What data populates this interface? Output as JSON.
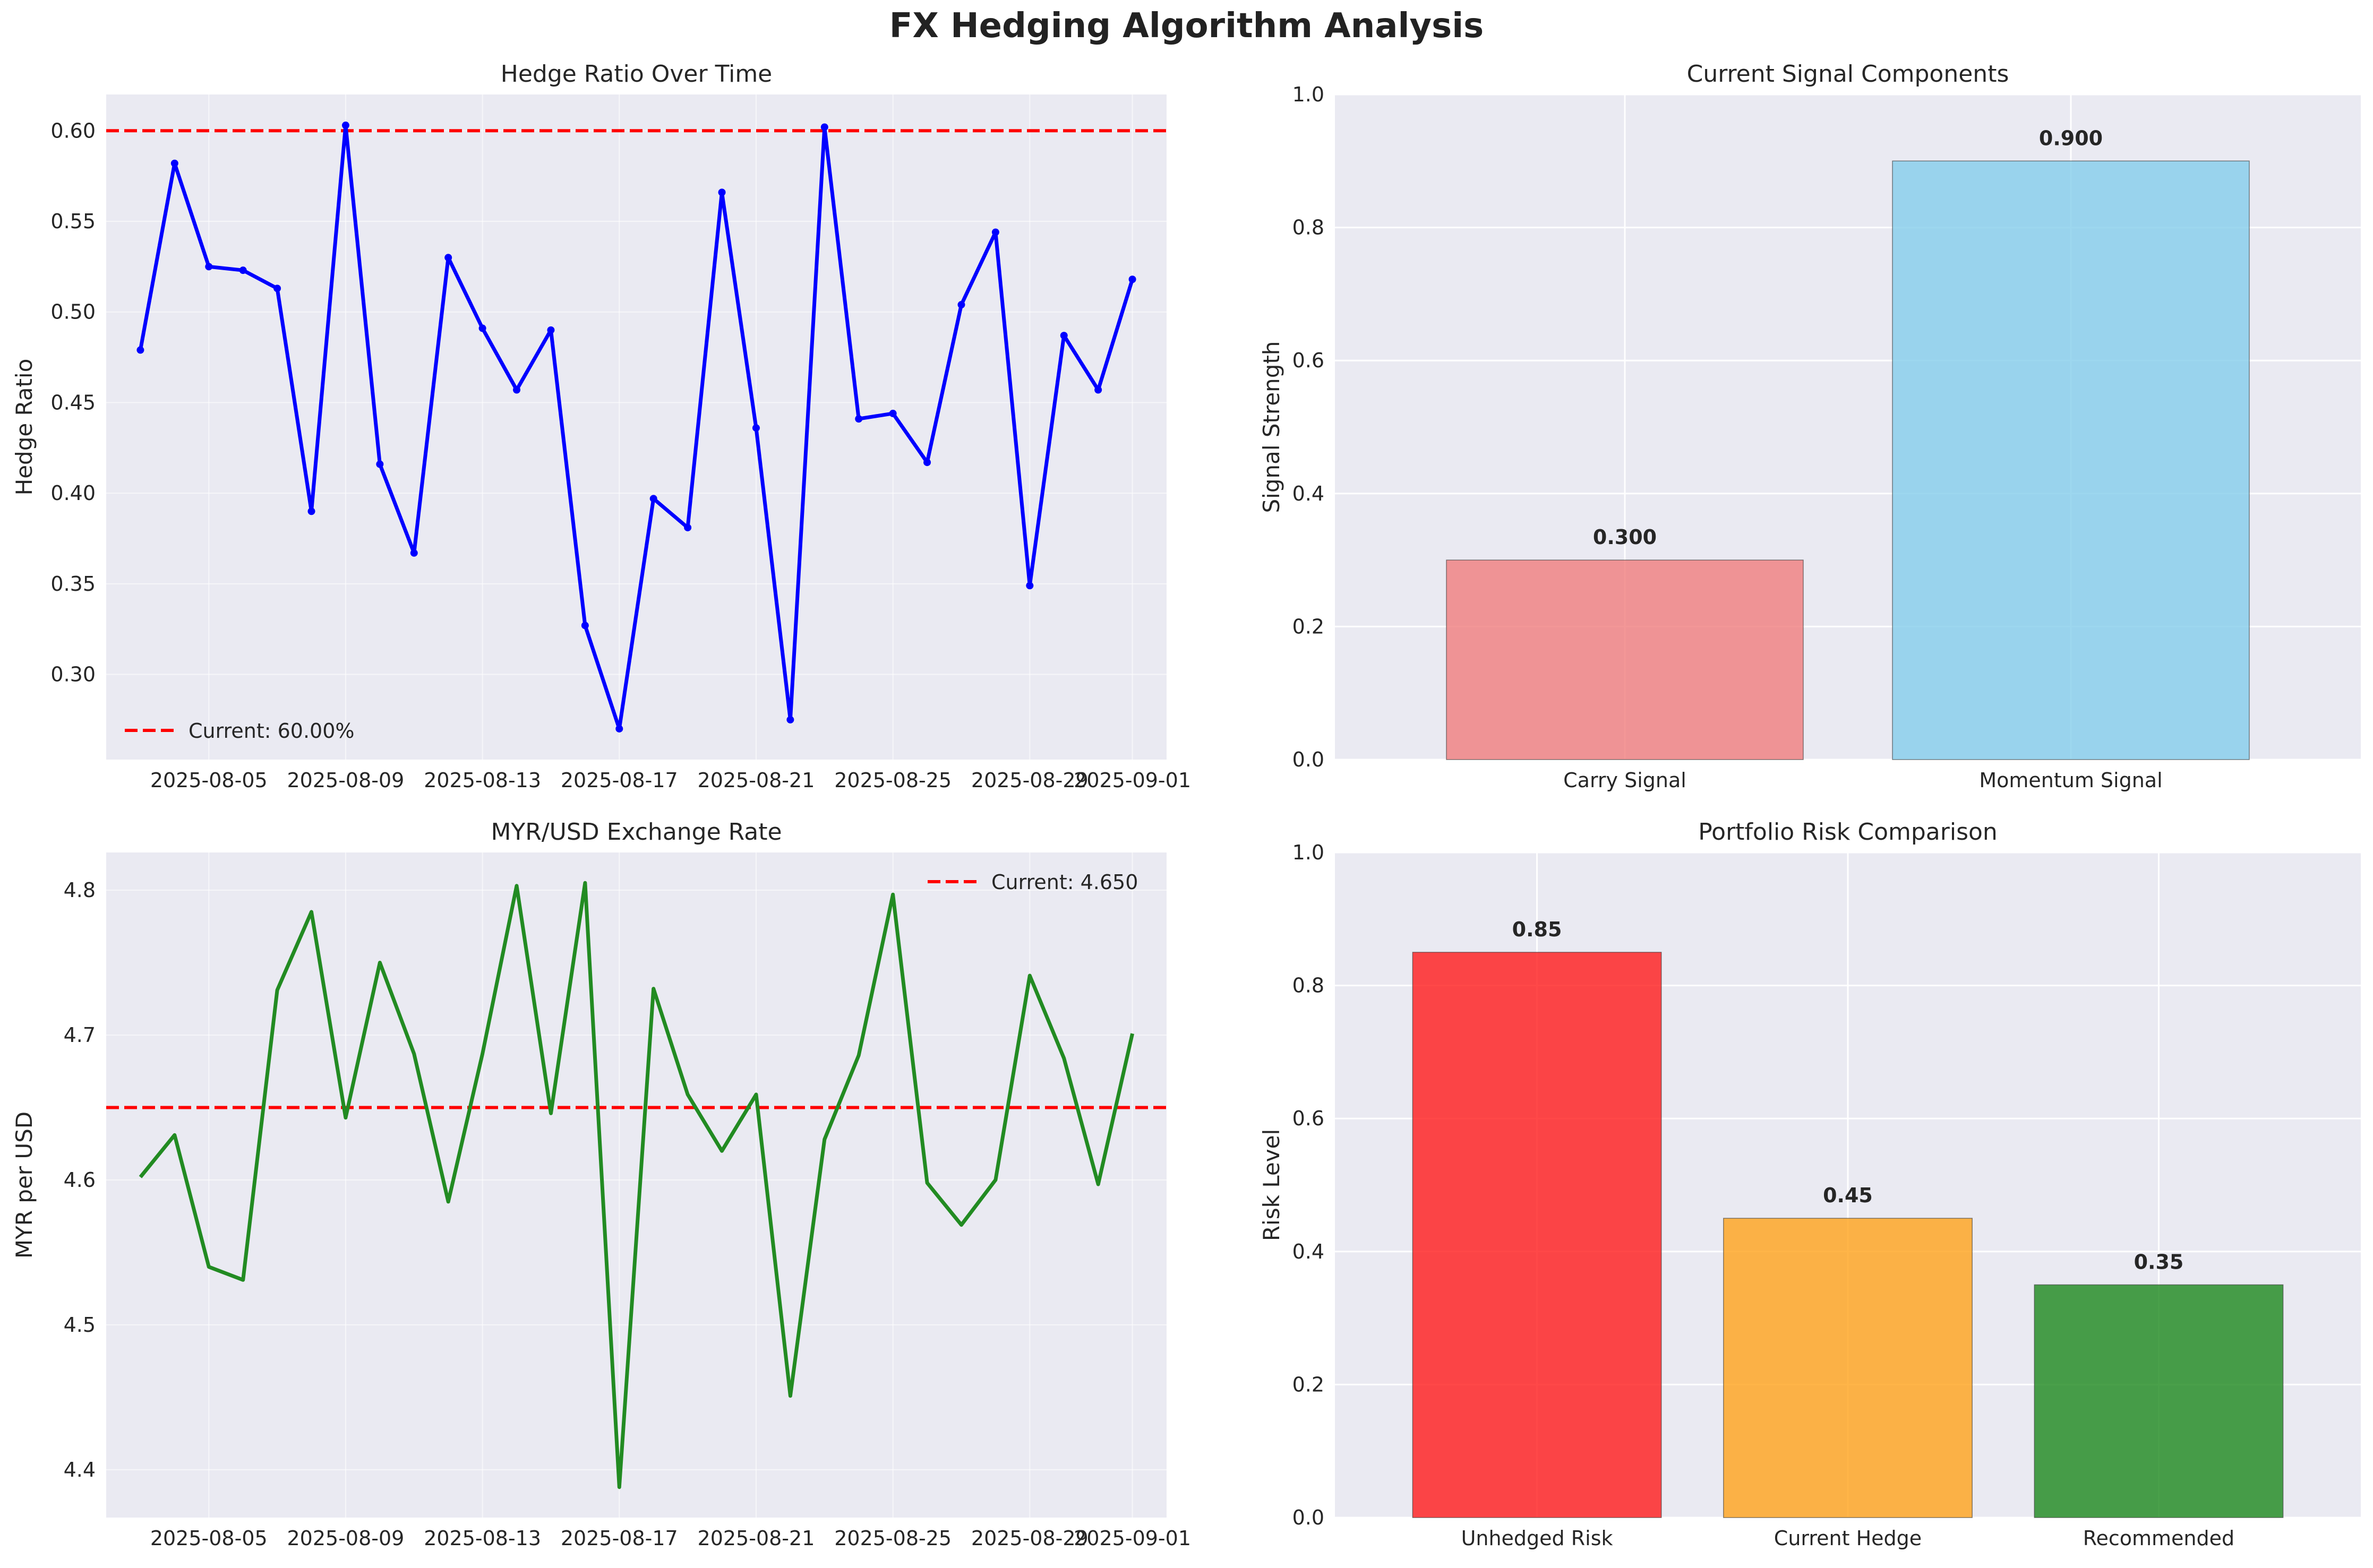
{
  "figure": {
    "title": "FX Hedging Algorithm Analysis",
    "colors": {
      "panel_bg": "#eaeaf2",
      "grid": "#ffffff",
      "text": "#262626",
      "reference": "#ff0000"
    }
  },
  "chart_data": [
    {
      "type": "line",
      "title": "Hedge Ratio Over Time",
      "xlabel": "",
      "ylabel": "Hedge Ratio",
      "x": [
        "2025-08-03",
        "2025-08-04",
        "2025-08-05",
        "2025-08-06",
        "2025-08-07",
        "2025-08-08",
        "2025-08-09",
        "2025-08-10",
        "2025-08-11",
        "2025-08-12",
        "2025-08-13",
        "2025-08-14",
        "2025-08-15",
        "2025-08-16",
        "2025-08-17",
        "2025-08-18",
        "2025-08-19",
        "2025-08-20",
        "2025-08-21",
        "2025-08-22",
        "2025-08-23",
        "2025-08-24",
        "2025-08-25",
        "2025-08-26",
        "2025-08-27",
        "2025-08-28",
        "2025-08-29",
        "2025-08-30",
        "2025-08-31",
        "2025-09-01"
      ],
      "series": [
        {
          "values": [
            0.479,
            0.582,
            0.525,
            0.523,
            0.513,
            0.39,
            0.603,
            0.416,
            0.367,
            0.53,
            0.491,
            0.457,
            0.49,
            0.327,
            0.27,
            0.397,
            0.381,
            0.566,
            0.436,
            0.275,
            0.602,
            0.441,
            0.444,
            0.417,
            0.504,
            0.544,
            0.349,
            0.487,
            0.457,
            0.518
          ],
          "color": "#0000ff",
          "markers": true
        }
      ],
      "reference_line": {
        "y": 0.6,
        "label": "Current: 60.00%",
        "color": "#ff0000",
        "style": "dashed"
      },
      "xticks": [
        "2025-08-05",
        "2025-08-09",
        "2025-08-13",
        "2025-08-17",
        "2025-08-21",
        "2025-08-25",
        "2025-08-29",
        "2025-09-01"
      ],
      "yticks": [
        "0.30",
        "0.35",
        "0.40",
        "0.45",
        "0.50",
        "0.55",
        "0.60"
      ],
      "xlim": [
        "2025-08-02",
        "2025-09-02"
      ],
      "ylim": [
        0.253,
        0.62
      ],
      "grid": true,
      "legend": "lower-left"
    },
    {
      "type": "bar",
      "title": "Current Signal Components",
      "xlabel": "",
      "ylabel": "Signal Strength",
      "categories": [
        "Carry Signal",
        "Momentum Signal"
      ],
      "values": [
        0.3,
        0.9
      ],
      "value_labels": [
        "0.300",
        "0.900"
      ],
      "colors": [
        "#f08080",
        "#87ceeb"
      ],
      "yticks": [
        "0.0",
        "0.2",
        "0.4",
        "0.6",
        "0.8",
        "1.0"
      ],
      "ylim": [
        0,
        1
      ],
      "grid": true
    },
    {
      "type": "line",
      "title": "MYR/USD Exchange Rate",
      "xlabel": "",
      "ylabel": "MYR per USD",
      "x": [
        "2025-08-03",
        "2025-08-04",
        "2025-08-05",
        "2025-08-06",
        "2025-08-07",
        "2025-08-08",
        "2025-08-09",
        "2025-08-10",
        "2025-08-11",
        "2025-08-12",
        "2025-08-13",
        "2025-08-14",
        "2025-08-15",
        "2025-08-16",
        "2025-08-17",
        "2025-08-18",
        "2025-08-19",
        "2025-08-20",
        "2025-08-21",
        "2025-08-22",
        "2025-08-23",
        "2025-08-24",
        "2025-08-25",
        "2025-08-26",
        "2025-08-27",
        "2025-08-28",
        "2025-08-29",
        "2025-08-30",
        "2025-08-31",
        "2025-09-01"
      ],
      "series": [
        {
          "values": [
            4.602,
            4.631,
            4.54,
            4.531,
            4.731,
            4.785,
            4.643,
            4.75,
            4.687,
            4.585,
            4.687,
            4.803,
            4.646,
            4.805,
            4.388,
            4.732,
            4.659,
            4.62,
            4.659,
            4.451,
            4.628,
            4.686,
            4.797,
            4.598,
            4.569,
            4.6,
            4.741,
            4.684,
            4.597,
            4.701
          ],
          "color": "#228b22",
          "markers": false
        }
      ],
      "reference_line": {
        "y": 4.65,
        "label": "Current: 4.650",
        "color": "#ff0000",
        "style": "dashed"
      },
      "xticks": [
        "2025-08-05",
        "2025-08-09",
        "2025-08-13",
        "2025-08-17",
        "2025-08-21",
        "2025-08-25",
        "2025-08-29",
        "2025-09-01"
      ],
      "yticks": [
        "4.4",
        "4.5",
        "4.6",
        "4.7",
        "4.8"
      ],
      "xlim": [
        "2025-08-02",
        "2025-09-02"
      ],
      "ylim": [
        4.367,
        4.826
      ],
      "grid": true,
      "legend": "upper-right"
    },
    {
      "type": "bar",
      "title": "Portfolio Risk Comparison",
      "xlabel": "",
      "ylabel": "Risk Level",
      "categories": [
        "Unhedged Risk",
        "Current Hedge",
        "Recommended"
      ],
      "values": [
        0.85,
        0.45,
        0.35
      ],
      "value_labels": [
        "0.85",
        "0.45",
        "0.35"
      ],
      "colors": [
        "#ff2020",
        "#ffa520",
        "#228b22"
      ],
      "yticks": [
        "0.0",
        "0.2",
        "0.4",
        "0.6",
        "0.8",
        "1.0"
      ],
      "ylim": [
        0,
        1
      ],
      "grid": true
    }
  ]
}
